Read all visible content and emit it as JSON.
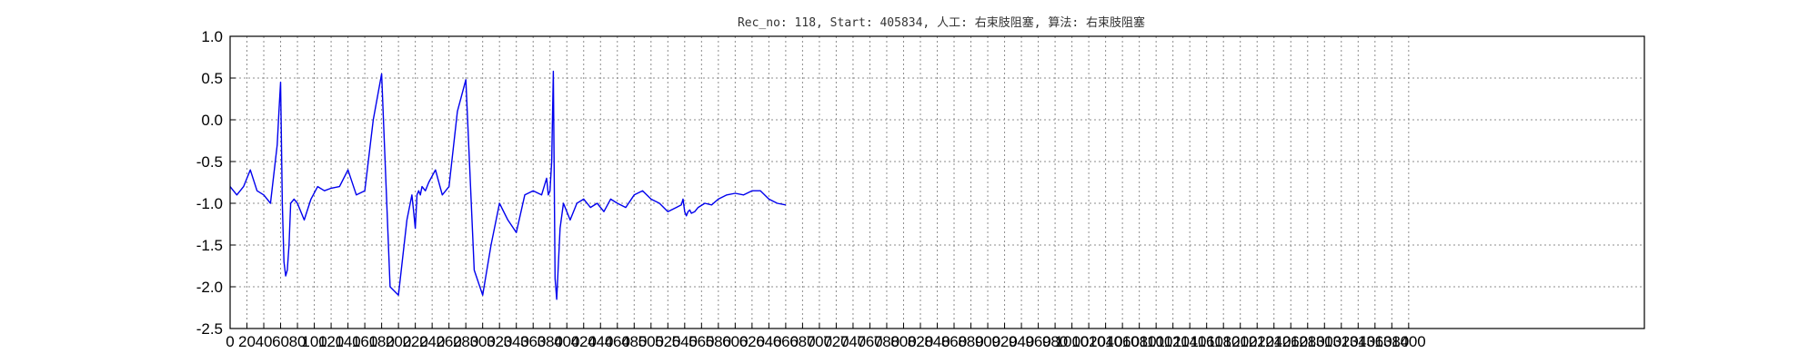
{
  "chart_data": {
    "type": "line",
    "title": "Rec_no: 118, Start: 405834, 人工: 右束肢阻塞, 算法: 右束肢阻塞",
    "xlabel": "",
    "ylabel": "",
    "xlim": [
      0,
      1680
    ],
    "ylim": [
      -2.5,
      1.0
    ],
    "grid": true,
    "y_ticks": [
      "1.0",
      "0.5",
      "0.0",
      "-0.5",
      "-1.0",
      "-1.5",
      "-2.0",
      "-2.5"
    ],
    "x_tick_values": [
      0,
      20,
      40,
      60,
      80,
      100,
      120,
      140,
      160,
      180,
      200,
      220,
      240,
      260,
      280,
      300,
      320,
      340,
      360,
      380,
      400,
      420,
      440,
      460,
      480,
      500,
      520,
      540,
      560,
      580,
      600,
      620,
      640,
      660,
      680,
      700,
      720,
      740,
      760,
      780,
      800,
      820,
      840,
      860,
      880,
      900,
      920,
      940,
      960,
      980,
      1000,
      1020,
      1040,
      1060,
      1080,
      1100,
      1120,
      1140,
      1160,
      1180,
      1200,
      1220,
      1240,
      1260,
      1280,
      1300,
      1320,
      1340,
      1360,
      1380,
      1400
    ],
    "colors": {
      "signal": "#0000ee",
      "highlight": "#ee0000"
    },
    "series": [
      {
        "color": "#0000ee",
        "x": [
          0,
          8,
          16,
          24,
          32,
          40,
          48,
          56,
          58,
          60,
          62,
          64,
          66,
          68,
          70,
          72,
          76,
          80,
          88,
          96,
          104,
          112,
          120,
          130,
          140,
          150,
          160,
          170,
          180,
          190,
          200,
          210,
          216,
          218,
          220,
          222,
          224,
          226,
          228,
          232,
          236,
          244,
          252,
          260,
          270,
          280,
          290,
          300,
          310,
          320,
          330,
          340,
          350,
          360,
          370,
          376,
          378,
          380,
          382,
          384,
          386,
          388,
          392,
          396,
          404,
          412,
          420,
          428,
          436,
          444,
          452,
          460,
          470,
          480,
          490,
          500,
          510,
          520,
          530,
          536,
          538,
          540,
          542,
          544,
          546,
          548,
          552,
          556,
          564,
          572,
          580,
          590,
          600,
          610,
          620,
          630,
          640,
          650,
          660
        ],
        "y": [
          -0.8,
          -0.9,
          -0.8,
          -0.6,
          -0.85,
          -0.9,
          -1.0,
          -0.3,
          0.1,
          0.45,
          -1.0,
          -1.7,
          -1.87,
          -1.8,
          -1.5,
          -1.0,
          -0.95,
          -1.0,
          -1.2,
          -0.95,
          -0.8,
          -0.85,
          -0.82,
          -0.8,
          -0.6,
          -0.9,
          -0.85,
          0.0,
          0.55,
          -2.0,
          -2.1,
          -1.2,
          -0.9,
          -1.1,
          -1.3,
          -0.9,
          -0.85,
          -0.9,
          -0.8,
          -0.85,
          -0.75,
          -0.6,
          -0.9,
          -0.8,
          0.1,
          0.48,
          -1.8,
          -2.1,
          -1.5,
          -1.0,
          -1.2,
          -1.35,
          -0.9,
          -0.85,
          -0.9,
          -0.7,
          -0.9,
          -0.85,
          -0.5,
          0.58,
          -1.9,
          -2.15,
          -1.3,
          -1.0,
          -1.2,
          -1.0,
          -0.95,
          -1.05,
          -1.0,
          -1.1,
          -0.95,
          -1.0,
          -1.05,
          -0.9,
          -0.85,
          -0.95,
          -1.0,
          -1.1,
          -1.05,
          -1.02,
          -0.95,
          -1.1,
          -1.15,
          -1.1,
          -1.08,
          -1.12,
          -1.1,
          -1.05,
          -1.0,
          -1.02,
          -0.95,
          -0.9,
          -0.88,
          -0.9,
          -0.85,
          -0.85,
          -0.95,
          -1.0,
          -1.02
        ]
      }
    ]
  }
}
